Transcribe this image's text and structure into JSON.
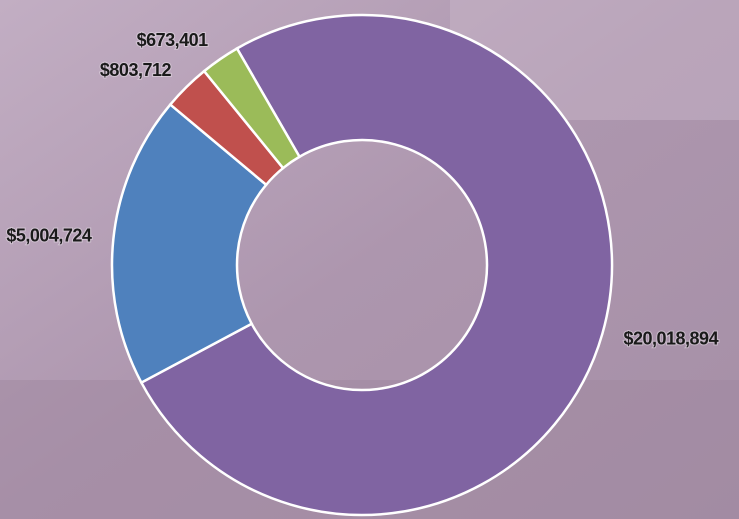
{
  "chart_data": {
    "type": "donut",
    "categories": [
      null,
      null,
      null,
      null
    ],
    "values": [
      20018894,
      5004724,
      803712,
      673401
    ],
    "value_labels": [
      "$20,018,894",
      "$5,004,724",
      "$803,712",
      "$673,401"
    ],
    "colors": [
      "#8064a2",
      "#4f81bd",
      "#c0504d",
      "#9bbb59"
    ]
  }
}
